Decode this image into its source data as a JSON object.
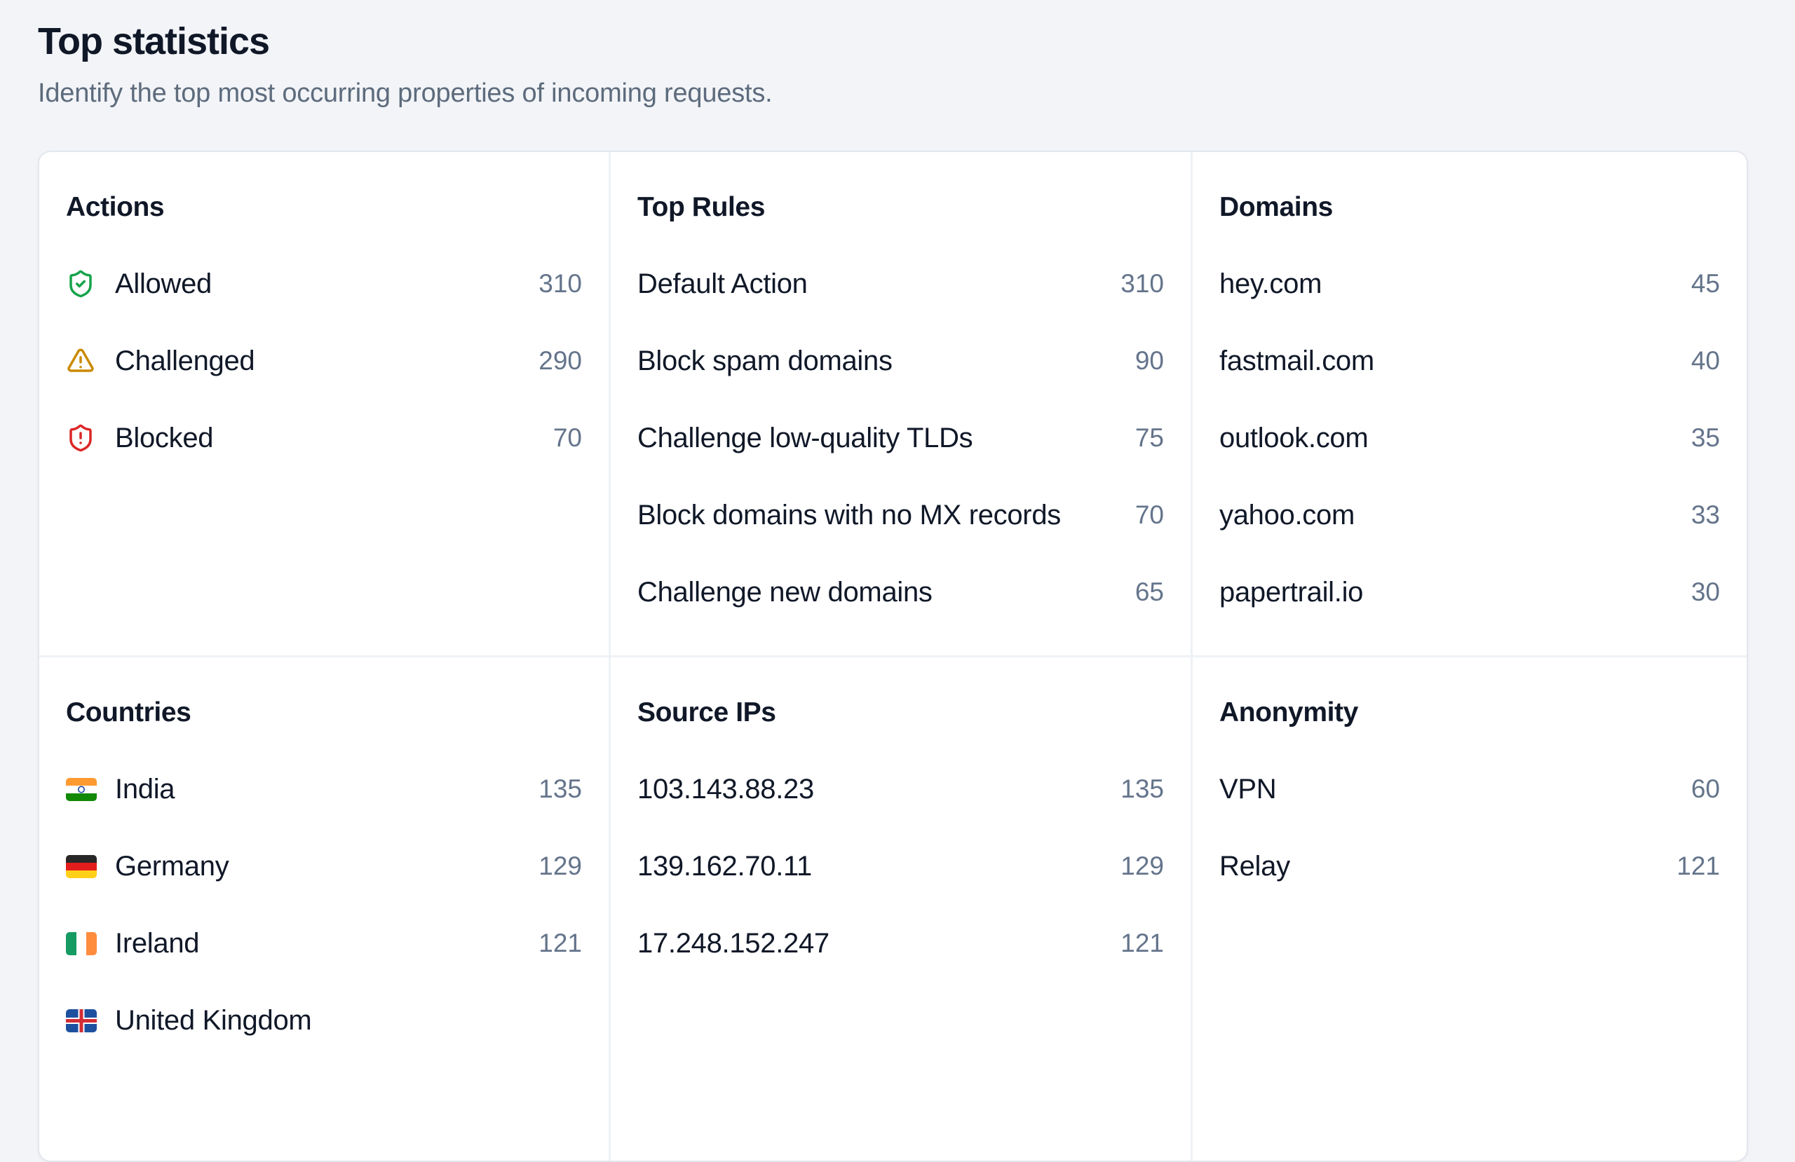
{
  "page": {
    "title": "Top statistics",
    "subtitle": "Identify the top most occurring properties of incoming requests."
  },
  "colors": {
    "background": "#f2f4f7",
    "card_border": "#e3e7ed",
    "primary_text": "#101828",
    "secondary_text": "#64748b",
    "allowed_green": "#16a34a",
    "challenged_amber": "#ca8a04",
    "blocked_red": "#dc2626"
  },
  "panels": {
    "actions": {
      "title": "Actions",
      "rows": [
        {
          "icon": "shield-check",
          "icon_color": "#16a34a",
          "label": "Allowed",
          "value": "310"
        },
        {
          "icon": "triangle-alert",
          "icon_color": "#ca8a04",
          "label": "Challenged",
          "value": "290"
        },
        {
          "icon": "shield-alert",
          "icon_color": "#dc2626",
          "label": "Blocked",
          "value": "70"
        }
      ]
    },
    "top_rules": {
      "title": "Top Rules",
      "rows": [
        {
          "label": "Default Action",
          "value": "310"
        },
        {
          "label": "Block spam domains",
          "value": "90"
        },
        {
          "label": "Challenge low-quality TLDs",
          "value": "75"
        },
        {
          "label": "Block domains with no MX records",
          "value": "70"
        },
        {
          "label": "Challenge new domains",
          "value": "65"
        }
      ]
    },
    "domains": {
      "title": "Domains",
      "rows": [
        {
          "label": "hey.com",
          "value": "45"
        },
        {
          "label": "fastmail.com",
          "value": "40"
        },
        {
          "label": "outlook.com",
          "value": "35"
        },
        {
          "label": "yahoo.com",
          "value": "33"
        },
        {
          "label": "papertrail.io",
          "value": "30"
        }
      ]
    },
    "countries": {
      "title": "Countries",
      "rows": [
        {
          "flag": "india",
          "label": "India",
          "value": "135"
        },
        {
          "flag": "germany",
          "label": "Germany",
          "value": "129"
        },
        {
          "flag": "ireland",
          "label": "Ireland",
          "value": "121"
        },
        {
          "flag": "united-kingdom",
          "label": "United Kingdom",
          "value": "",
          "partially_visible": true
        }
      ]
    },
    "source_ips": {
      "title": "Source IPs",
      "rows": [
        {
          "label": "103.143.88.23",
          "value": "135"
        },
        {
          "label": "139.162.70.11",
          "value": "129"
        },
        {
          "label": "17.248.152.247",
          "value": "121"
        }
      ]
    },
    "anonymity": {
      "title": "Anonymity",
      "rows": [
        {
          "label": "VPN",
          "value": "60"
        },
        {
          "label": "Relay",
          "value": "121"
        }
      ]
    }
  }
}
